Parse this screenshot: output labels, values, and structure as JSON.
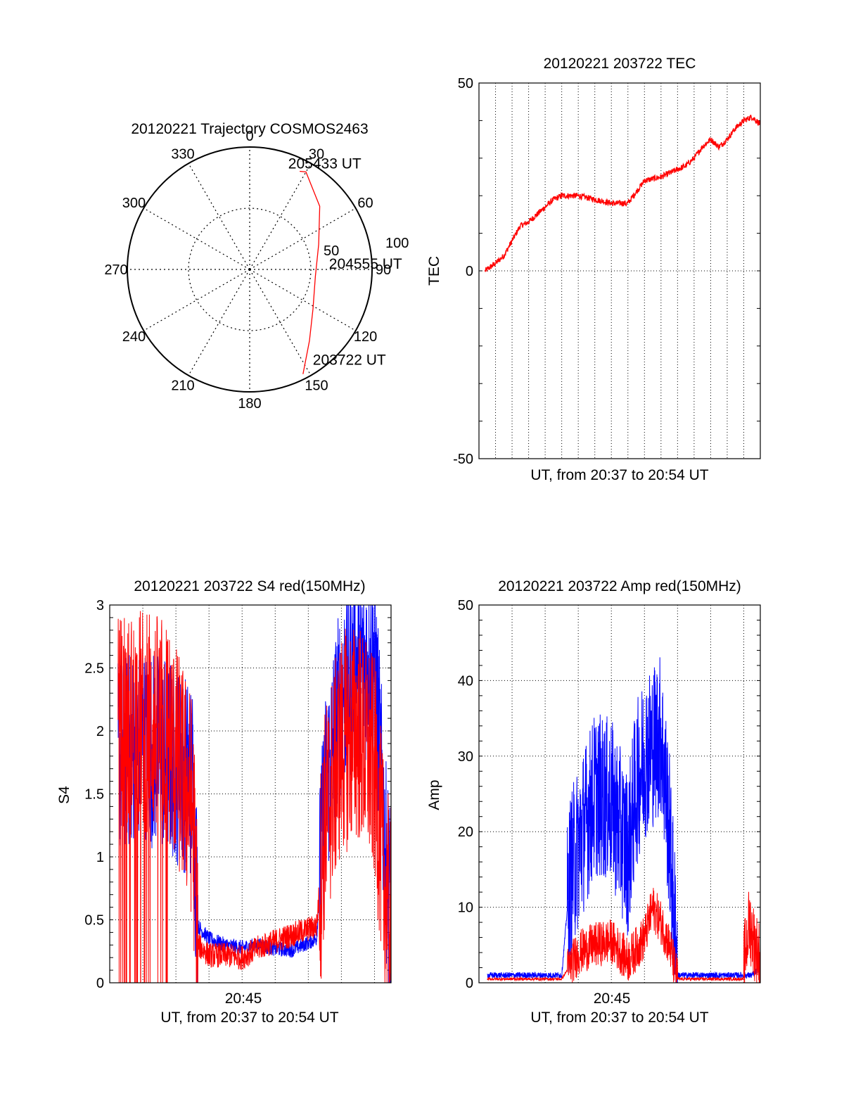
{
  "colors": {
    "red": "#ff0000",
    "blue": "#0000ff",
    "axis": "#000000",
    "grid": "#000000"
  },
  "chart_data": [
    {
      "type": "polar",
      "title": "20120221 Trajectory COSMOS2463",
      "azimuth_labels": [
        "0",
        "30",
        "60",
        "90",
        "120",
        "150",
        "180",
        "210",
        "240",
        "270",
        "300",
        "330"
      ],
      "radial_labels": [
        "50",
        "100"
      ],
      "rlim": [
        0,
        100
      ],
      "series": [
        {
          "color": "red",
          "points": [
            {
              "az": 153,
              "r": 96
            },
            {
              "az": 140,
              "r": 76
            },
            {
              "az": 122,
              "r": 61
            },
            {
              "az": 96,
              "r": 54
            },
            {
              "az": 70,
              "r": 60
            },
            {
              "az": 48,
              "r": 77
            },
            {
              "az": 30,
              "r": 92
            },
            {
              "az": 27,
              "r": 90
            }
          ]
        }
      ],
      "annotations": [
        {
          "text": "205433 UT",
          "az": 20,
          "r": 92
        },
        {
          "text": "204555 UT",
          "az": 86,
          "r": 65
        },
        {
          "text": "203722 UT",
          "az": 145,
          "r": 90
        }
      ]
    },
    {
      "type": "line",
      "title": "20120221 203722 TEC",
      "xlabel": "UT, from 20:37 to 20:54 UT",
      "ylabel": "TEC",
      "xlim": [
        "20:37",
        "20:54"
      ],
      "ylim": [
        -50,
        50
      ],
      "yticks": [
        "-50",
        "0",
        "50"
      ],
      "grid": true,
      "series": [
        {
          "color": "red",
          "x": [
            "20:37:22",
            "20:38:00",
            "20:38:30",
            "20:39:30",
            "20:40:00",
            "20:41:00",
            "20:41:30",
            "20:42:00",
            "20:43:00",
            "20:44:00",
            "20:45:00",
            "20:46:00",
            "20:46:30",
            "20:47:00",
            "20:48:00",
            "20:49:00",
            "20:49:30",
            "20:50:00",
            "20:50:30",
            "20:51:00",
            "20:51:30",
            "20:52:00",
            "20:52:30",
            "20:53:00",
            "20:53:30",
            "20:54:00"
          ],
          "y": [
            0,
            2,
            4,
            12,
            13,
            17,
            19,
            20,
            20,
            19,
            18,
            18,
            21,
            24,
            25,
            27,
            28,
            30,
            33,
            35,
            33,
            35,
            38,
            40,
            41,
            39
          ]
        }
      ]
    },
    {
      "type": "line",
      "title": "20120221 203722 S4 red(150MHz)",
      "xlabel": "UT, from 20:37 to 20:54 UT",
      "ylabel": "S4",
      "xlim": [
        "20:37",
        "20:54"
      ],
      "ylim": [
        0,
        3
      ],
      "xticks": [
        "20:45"
      ],
      "yticks": [
        "0",
        "0.5",
        "1",
        "1.5",
        "2",
        "2.5",
        "3"
      ],
      "grid": true,
      "series": [
        {
          "color": "blue",
          "x": [
            "20:37:30",
            "20:39:00",
            "20:40:30",
            "20:42:00",
            "20:42:20",
            "20:43:00",
            "20:44:00",
            "20:45:00",
            "20:46:00",
            "20:47:00",
            "20:48:00",
            "20:49:30",
            "20:50:00",
            "20:51:00",
            "20:52:00",
            "20:53:00",
            "20:53:40",
            "20:54:00"
          ],
          "y": [
            1.8,
            1.9,
            1.8,
            1.6,
            0.45,
            0.35,
            0.3,
            0.28,
            0.3,
            0.27,
            0.26,
            0.35,
            1.5,
            2.3,
            2.5,
            2.6,
            1.0,
            0.6
          ]
        },
        {
          "color": "red",
          "x": [
            "20:37:30",
            "20:39:00",
            "20:40:30",
            "20:42:00",
            "20:42:20",
            "20:43:00",
            "20:44:00",
            "20:45:00",
            "20:46:00",
            "20:47:00",
            "20:48:00",
            "20:49:30",
            "20:50:00",
            "20:51:00",
            "20:52:00",
            "20:53:00",
            "20:53:40",
            "20:54:00"
          ],
          "y": [
            2.0,
            2.1,
            2.0,
            1.4,
            0.3,
            0.22,
            0.22,
            0.2,
            0.28,
            0.33,
            0.38,
            0.45,
            1.3,
            1.9,
            2.0,
            1.7,
            0.7,
            0.5
          ]
        }
      ]
    },
    {
      "type": "line",
      "title": "20120221 203722 Amp red(150MHz)",
      "xlabel": "UT, from 20:37 to 20:54 UT",
      "ylabel": "Amp",
      "xlim": [
        "20:37",
        "20:54"
      ],
      "ylim": [
        0,
        50
      ],
      "xticks": [
        "20:45"
      ],
      "yticks": [
        "0",
        "10",
        "20",
        "30",
        "40",
        "50"
      ],
      "grid": true,
      "series": [
        {
          "color": "blue",
          "x": [
            "20:37:30",
            "20:42:00",
            "20:42:30",
            "20:43:00",
            "20:44:00",
            "20:45:00",
            "20:46:00",
            "20:46:30",
            "20:47:00",
            "20:48:00",
            "20:48:30",
            "20:49:00",
            "20:50:00",
            "20:52:00",
            "20:53:30",
            "20:54:00"
          ],
          "y": [
            1,
            1,
            14,
            18,
            25,
            24,
            17,
            26,
            30,
            33,
            20,
            1,
            1,
            1,
            1,
            2
          ]
        },
        {
          "color": "red",
          "x": [
            "20:37:30",
            "20:42:00",
            "20:43:00",
            "20:44:00",
            "20:45:00",
            "20:46:00",
            "20:47:00",
            "20:47:30",
            "20:48:00",
            "20:48:30",
            "20:49:00",
            "20:52:00",
            "20:53:00",
            "20:53:20",
            "20:53:40",
            "20:54:00"
          ],
          "y": [
            0.5,
            0.5,
            4,
            5,
            5.5,
            3,
            6,
            10,
            8,
            5,
            0.5,
            0.5,
            0.5,
            6,
            3,
            1
          ]
        }
      ]
    }
  ]
}
